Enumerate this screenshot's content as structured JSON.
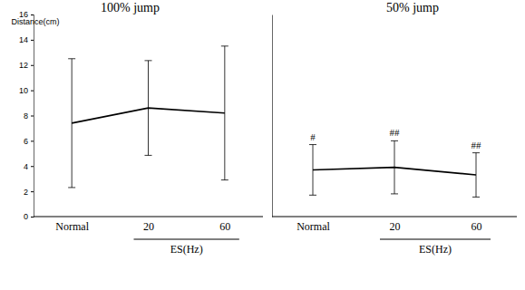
{
  "chart_data": [
    {
      "type": "line",
      "title": "100% jump",
      "y_label": "Distance(cm)",
      "x_label": "ES(Hz)",
      "categories": [
        "Normal",
        "20",
        "60"
      ],
      "series": [
        {
          "color": "#000000",
          "values": [
            7.4,
            8.6,
            8.2
          ],
          "errors": [
            5.1,
            3.75,
            5.3
          ]
        }
      ],
      "ylim": [
        0,
        16
      ],
      "yticks": [
        0,
        2,
        4,
        6,
        8,
        10,
        12,
        14,
        16
      ]
    },
    {
      "type": "line",
      "title": "50% jump",
      "x_label": "ES(Hz)",
      "categories": [
        "Normal",
        "20",
        "60"
      ],
      "series": [
        {
          "color": "#000000",
          "values": [
            3.7,
            3.9,
            3.3
          ],
          "errors": [
            2.0,
            2.1,
            1.75
          ],
          "point_labels": [
            "#",
            "##",
            "##"
          ]
        }
      ],
      "ylim": [
        0,
        16
      ],
      "tick_labels": "x"
    }
  ]
}
